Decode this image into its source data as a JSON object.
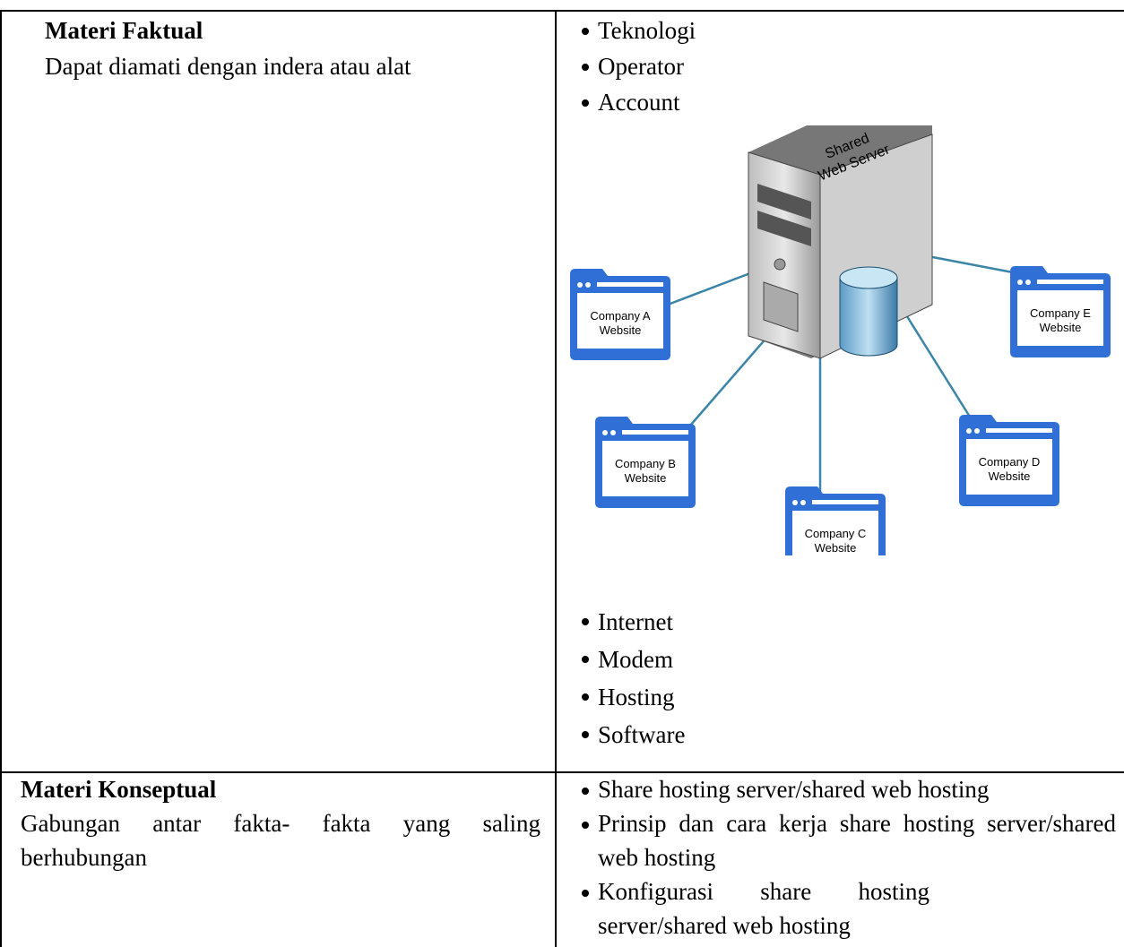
{
  "table": {
    "rows": [
      {
        "title": "Materi Faktual",
        "description": "Dapat diamati dengan indera atau alat",
        "items_before": [
          "Teknologi",
          "Operator",
          "Account"
        ],
        "items_after": [
          "Internet",
          "Modem",
          "Hosting",
          "Software"
        ]
      },
      {
        "title": "Materi Konseptual",
        "description": "Gabungan antar fakta- fakta yang saling berhubungan",
        "items": [
          "Share hosting server/shared web hosting",
          "Prinsip dan cara kerja share hosting server/shared web hosting",
          "Konfigurasi share hosting server/shared web hosting"
        ]
      }
    ]
  },
  "diagram": {
    "server": [
      "Shared",
      "Web Server"
    ],
    "nodes": [
      {
        "lines": [
          "Company A",
          "Website"
        ]
      },
      {
        "lines": [
          "Company B",
          "Website"
        ]
      },
      {
        "lines": [
          "Company C",
          "Website"
        ]
      },
      {
        "lines": [
          "Company D",
          "Website"
        ]
      },
      {
        "lines": [
          "Company E",
          "Website"
        ]
      }
    ]
  }
}
